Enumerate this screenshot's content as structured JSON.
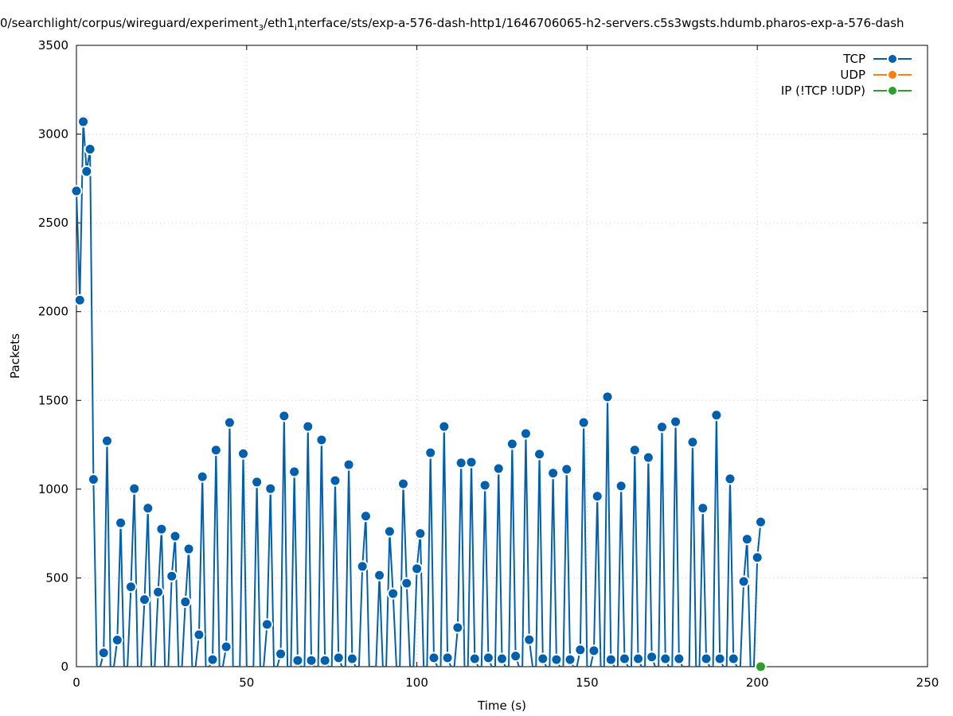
{
  "chart_data": {
    "type": "line",
    "title_parts": [
      "0/searchlight/corpus/wireguard/experiment",
      "3",
      "/eth1",
      "i",
      "nterface/sts/exp-a-576-dash-http1/1646706065-h2-servers.c5s3wgsts.hdumb.pharos-exp-a-576-dash"
    ],
    "xlabel": "Time (s)",
    "ylabel": "Packets",
    "xlim": [
      0,
      250
    ],
    "ylim": [
      0,
      3500
    ],
    "xticks": [
      0,
      50,
      100,
      150,
      200,
      250
    ],
    "yticks": [
      0,
      500,
      1000,
      1500,
      2000,
      2500,
      3000,
      3500
    ],
    "grid": true,
    "legend_placement": "top-right",
    "x_start": 0,
    "series": [
      {
        "name": "TCP",
        "color": "#0060ad",
        "values": [
          2680,
          2065,
          3070,
          2790,
          2915,
          1055,
          0,
          0,
          78,
          1272,
          0,
          0,
          150,
          810,
          0,
          0,
          450,
          1003,
          0,
          0,
          378,
          893,
          0,
          0,
          420,
          775,
          0,
          0,
          510,
          735,
          0,
          0,
          365,
          663,
          0,
          0,
          180,
          1070,
          0,
          0,
          40,
          1220,
          0,
          0,
          112,
          1375,
          0,
          0,
          0,
          1200,
          0,
          0,
          0,
          1040,
          0,
          0,
          238,
          1003,
          0,
          0,
          72,
          1412,
          0,
          0,
          1098,
          35,
          0,
          0,
          1353,
          35,
          0,
          0,
          1277,
          35,
          0,
          0,
          1048,
          50,
          0,
          0,
          1138,
          45,
          0,
          0,
          565,
          848,
          0,
          0,
          0,
          515,
          0,
          0,
          762,
          412,
          0,
          0,
          1030,
          470,
          0,
          0,
          552,
          750,
          0,
          0,
          1205,
          50,
          0,
          0,
          1353,
          50,
          0,
          0,
          220,
          1148,
          0,
          0,
          1152,
          45,
          0,
          0,
          1022,
          50,
          0,
          0,
          1116,
          45,
          0,
          0,
          1255,
          60,
          0,
          0,
          1313,
          152,
          0,
          0,
          1197,
          45,
          0,
          0,
          1090,
          40,
          0,
          0,
          1112,
          40,
          0,
          0,
          95,
          1375,
          0,
          0,
          90,
          960,
          0,
          0,
          1520,
          40,
          0,
          0,
          1018,
          45,
          0,
          0,
          1220,
          45,
          0,
          0,
          1178,
          55,
          0,
          0,
          1350,
          45,
          0,
          0,
          1380,
          45,
          0,
          0,
          0,
          1265,
          0,
          0,
          893,
          45,
          0,
          0,
          1417,
          45,
          0,
          0,
          1058,
          45,
          0,
          0,
          480,
          718,
          0,
          0,
          615,
          815
        ]
      },
      {
        "name": "UDP",
        "color": "#ff7f0e",
        "values": []
      },
      {
        "name": "IP (!TCP  !UDP)",
        "color": "#2ca02c",
        "points": [
          [
            201,
            0
          ]
        ]
      }
    ]
  }
}
